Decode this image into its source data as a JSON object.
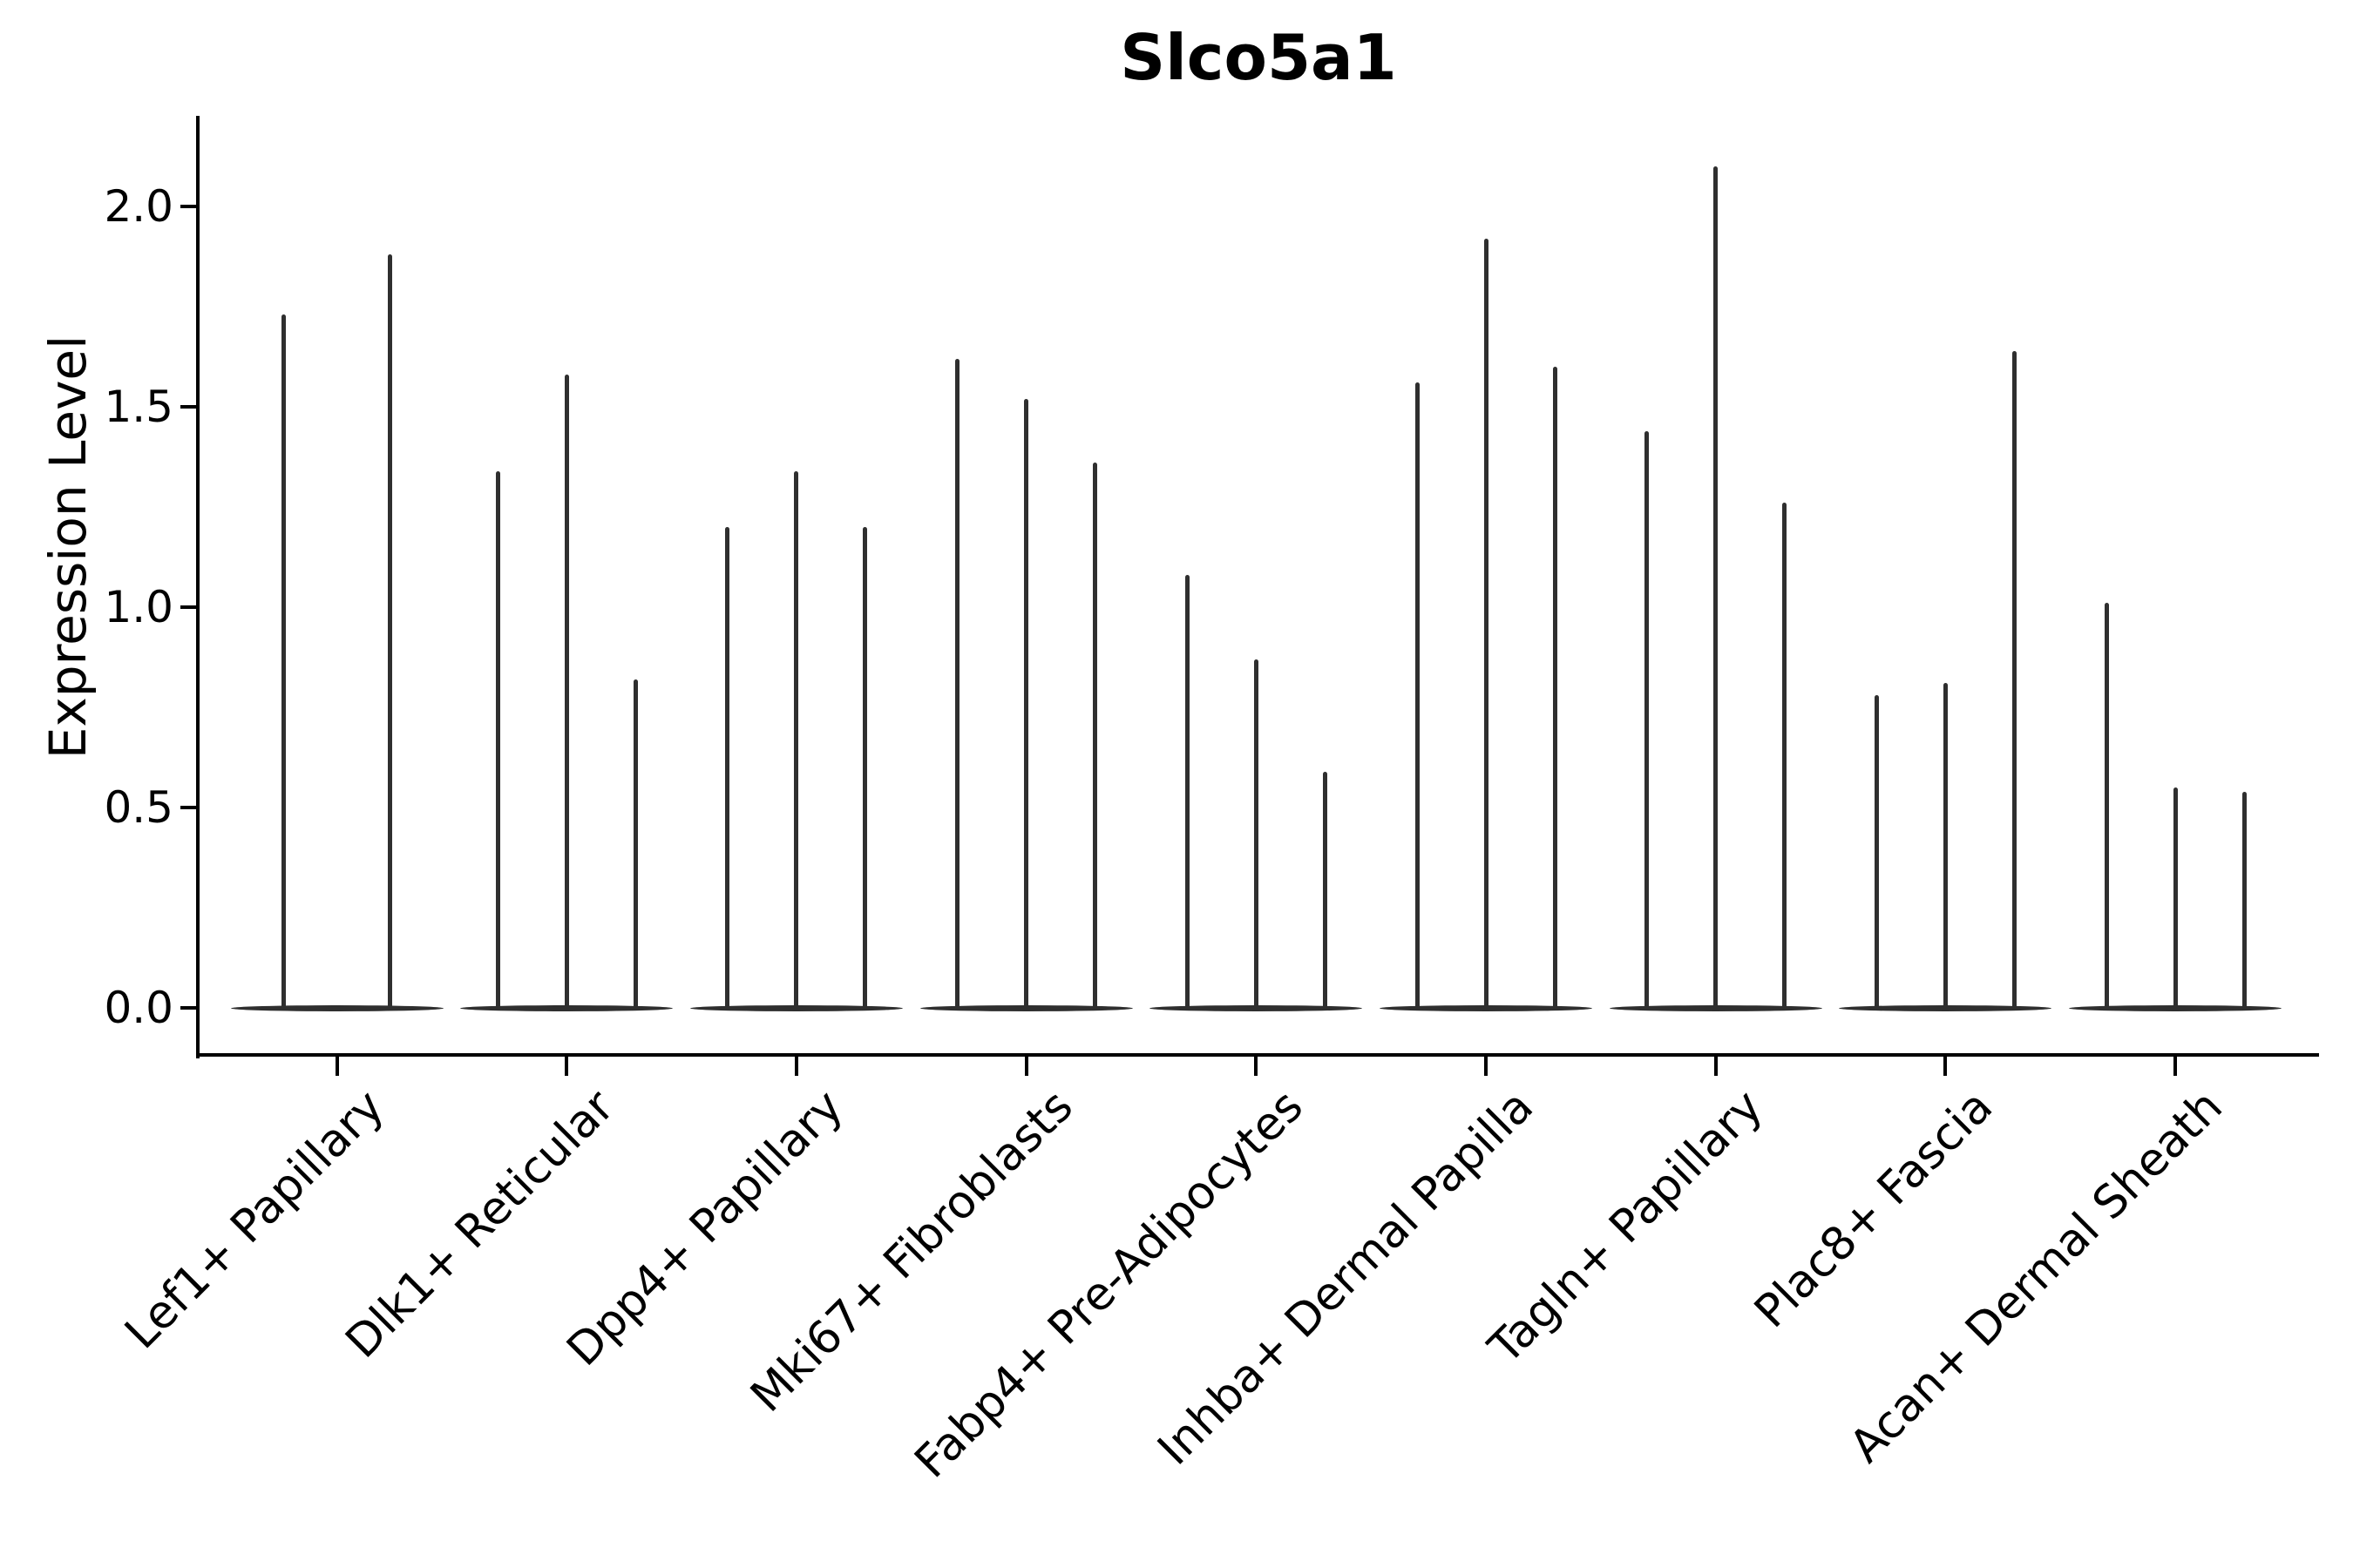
{
  "chart_data": {
    "type": "violin",
    "title": "Slco5a1",
    "xlabel": "",
    "ylabel": "Expression Level",
    "yticks": [
      "0.0",
      "0.5",
      "1.0",
      "1.5",
      "2.0"
    ],
    "ylim": [
      0.0,
      2.2
    ],
    "grid": false,
    "legend": "none",
    "violin_color": "#2f2f2f",
    "axis_color": "#000000",
    "categories": [
      "Lef1+ Papillary",
      "Dlk1+ Reticular",
      "Dpp4+ Papillary",
      "Mki67+ Fibroblasts",
      "Fabp4+ Pre-Adipocytes",
      "Inhba+ Dermal Papilla",
      "Tagln+ Papillary",
      "Plac8+ Fascia",
      "Acan+ Dermal Sheath"
    ],
    "groups": [
      {
        "label": "Lef1+ Papillary",
        "violin_max_expression": [
          1.73,
          1.88
        ]
      },
      {
        "label": "Dlk1+ Reticular",
        "violin_max_expression": [
          1.34,
          1.58,
          0.82
        ]
      },
      {
        "label": "Dpp4+ Papillary",
        "violin_max_expression": [
          1.2,
          1.34,
          1.2
        ]
      },
      {
        "label": "Mki67+ Fibroblasts",
        "violin_max_expression": [
          1.62,
          1.52,
          1.36
        ]
      },
      {
        "label": "Fabp4+ Pre-Adipocytes",
        "violin_max_expression": [
          1.08,
          0.87,
          0.59
        ]
      },
      {
        "label": "Inhba+ Dermal Papilla",
        "violin_max_expression": [
          1.56,
          1.92,
          1.6
        ]
      },
      {
        "label": "Tagln+ Papillary",
        "violin_max_expression": [
          1.44,
          2.1,
          1.26
        ]
      },
      {
        "label": "Plac8+ Fascia",
        "violin_max_expression": [
          0.78,
          0.81,
          1.64
        ]
      },
      {
        "label": "Acan+ Dermal Sheath",
        "violin_max_expression": [
          1.01,
          0.55,
          0.54
        ]
      }
    ],
    "description": "All violins are collapsed at 0 (flat base line) with a thin density spike rising to each population's maximum expression value."
  }
}
